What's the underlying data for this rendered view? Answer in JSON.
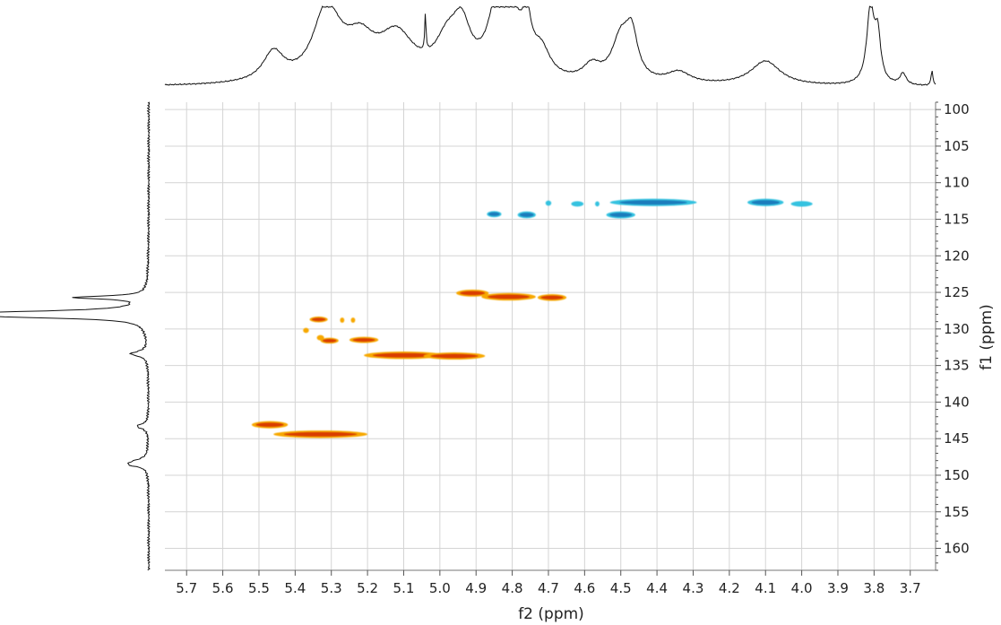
{
  "chart_data": {
    "type": "heatmap",
    "subtype": "2D NMR HSQC contour plot",
    "title": "",
    "xlabel": "f2 (ppm)",
    "ylabel": "f1 (ppm)",
    "xlim": [
      5.76,
      3.63
    ],
    "ylim": [
      99,
      163
    ],
    "x_reversed": true,
    "y_reversed": true,
    "x_ticks": [
      "5.7",
      "5.6",
      "5.5",
      "5.4",
      "5.3",
      "5.2",
      "5.1",
      "5.0",
      "4.9",
      "4.8",
      "4.7",
      "4.6",
      "4.5",
      "4.4",
      "4.3",
      "4.2",
      "4.1",
      "4.0",
      "3.9",
      "3.8",
      "3.7"
    ],
    "y_ticks": [
      "100",
      "105",
      "110",
      "115",
      "120",
      "125",
      "130",
      "135",
      "140",
      "145",
      "150",
      "155",
      "160"
    ],
    "grid": true,
    "colors": {
      "positive_core": "#d42a00",
      "positive_edge": "#f7a800",
      "negative_core": "#1a6fb5",
      "negative_edge": "#35c2e0"
    },
    "peaks_positive": [
      {
        "f2": 5.47,
        "f1": 143.1,
        "f2_width": 0.05,
        "intensity": 0.9
      },
      {
        "f2": 5.33,
        "f1": 144.4,
        "f2_width": 0.13,
        "intensity": 1.0
      },
      {
        "f2": 5.335,
        "f1": 128.7,
        "f2_width": 0.025,
        "intensity": 0.5
      },
      {
        "f2": 5.27,
        "f1": 128.8,
        "f2_width": 0.006,
        "intensity": 0.3
      },
      {
        "f2": 5.24,
        "f1": 128.8,
        "f2_width": 0.006,
        "intensity": 0.3
      },
      {
        "f2": 5.37,
        "f1": 130.2,
        "f2_width": 0.008,
        "intensity": 0.3
      },
      {
        "f2": 5.33,
        "f1": 131.2,
        "f2_width": 0.01,
        "intensity": 0.35
      },
      {
        "f2": 5.305,
        "f1": 131.6,
        "f2_width": 0.025,
        "intensity": 0.5
      },
      {
        "f2": 5.21,
        "f1": 131.5,
        "f2_width": 0.04,
        "intensity": 0.6
      },
      {
        "f2": 5.1,
        "f1": 133.6,
        "f2_width": 0.11,
        "intensity": 1.0
      },
      {
        "f2": 4.96,
        "f1": 133.7,
        "f2_width": 0.085,
        "intensity": 0.9
      },
      {
        "f2": 4.91,
        "f1": 125.1,
        "f2_width": 0.045,
        "intensity": 0.85
      },
      {
        "f2": 4.81,
        "f1": 125.6,
        "f2_width": 0.075,
        "intensity": 1.0
      },
      {
        "f2": 4.69,
        "f1": 125.7,
        "f2_width": 0.04,
        "intensity": 0.75
      }
    ],
    "peaks_negative": [
      {
        "f2": 4.85,
        "f1": 114.3,
        "f2_width": 0.02,
        "intensity": 0.6
      },
      {
        "f2": 4.76,
        "f1": 114.4,
        "f2_width": 0.025,
        "intensity": 0.8
      },
      {
        "f2": 4.7,
        "f1": 112.8,
        "f2_width": 0.008,
        "intensity": 0.3
      },
      {
        "f2": 4.62,
        "f1": 112.9,
        "f2_width": 0.017,
        "intensity": 0.35
      },
      {
        "f2": 4.565,
        "f1": 112.9,
        "f2_width": 0.006,
        "intensity": 0.3
      },
      {
        "f2": 4.5,
        "f1": 114.4,
        "f2_width": 0.04,
        "intensity": 0.85
      },
      {
        "f2": 4.41,
        "f1": 112.7,
        "f2_width": 0.12,
        "intensity": 0.95
      },
      {
        "f2": 4.1,
        "f1": 112.7,
        "f2_width": 0.05,
        "intensity": 0.95
      },
      {
        "f2": 4.0,
        "f1": 112.9,
        "f2_width": 0.03,
        "intensity": 0.4
      }
    ],
    "f2_projection": {
      "peaks": [
        {
          "ppm": 5.46,
          "height": 0.38,
          "width": 0.035
        },
        {
          "ppm": 5.32,
          "height": 0.55,
          "width": 0.04
        },
        {
          "ppm": 5.3,
          "height": 0.42,
          "width": 0.05
        },
        {
          "ppm": 5.22,
          "height": 0.45,
          "width": 0.05
        },
        {
          "ppm": 5.12,
          "height": 0.58,
          "width": 0.06
        },
        {
          "ppm": 5.04,
          "height": 0.5,
          "width": 0.002
        },
        {
          "ppm": 4.98,
          "height": 0.45,
          "width": 0.04
        },
        {
          "ppm": 4.94,
          "height": 0.6,
          "width": 0.03
        },
        {
          "ppm": 4.84,
          "height": 0.95,
          "width": 0.03
        },
        {
          "ppm": 4.8,
          "height": 0.65,
          "width": 0.03
        },
        {
          "ppm": 4.76,
          "height": 0.6,
          "width": 0.015
        },
        {
          "ppm": 4.72,
          "height": 0.35,
          "width": 0.03
        },
        {
          "ppm": 4.58,
          "height": 0.2,
          "width": 0.03
        },
        {
          "ppm": 4.5,
          "height": 0.55,
          "width": 0.03
        },
        {
          "ppm": 4.47,
          "height": 0.55,
          "width": 0.02
        },
        {
          "ppm": 4.34,
          "height": 0.15,
          "width": 0.04
        },
        {
          "ppm": 4.1,
          "height": 0.32,
          "width": 0.05
        },
        {
          "ppm": 3.81,
          "height": 1.0,
          "width": 0.012
        },
        {
          "ppm": 3.79,
          "height": 0.6,
          "width": 0.01
        },
        {
          "ppm": 3.72,
          "height": 0.15,
          "width": 0.01
        },
        {
          "ppm": 3.64,
          "height": 0.2,
          "width": 0.003
        }
      ]
    },
    "f1_projection": {
      "peaks": [
        {
          "ppm": 125.7,
          "height": 0.5,
          "width": 0.25
        },
        {
          "ppm": 127.8,
          "height": 1.0,
          "width": 0.35
        },
        {
          "ppm": 128.3,
          "height": 0.75,
          "width": 0.3
        },
        {
          "ppm": 133.4,
          "height": 0.12,
          "width": 0.4
        },
        {
          "ppm": 143.3,
          "height": 0.08,
          "width": 0.4
        },
        {
          "ppm": 148.2,
          "height": 0.1,
          "width": 0.5
        },
        {
          "ppm": 148.6,
          "height": 0.08,
          "width": 0.3
        }
      ]
    }
  }
}
